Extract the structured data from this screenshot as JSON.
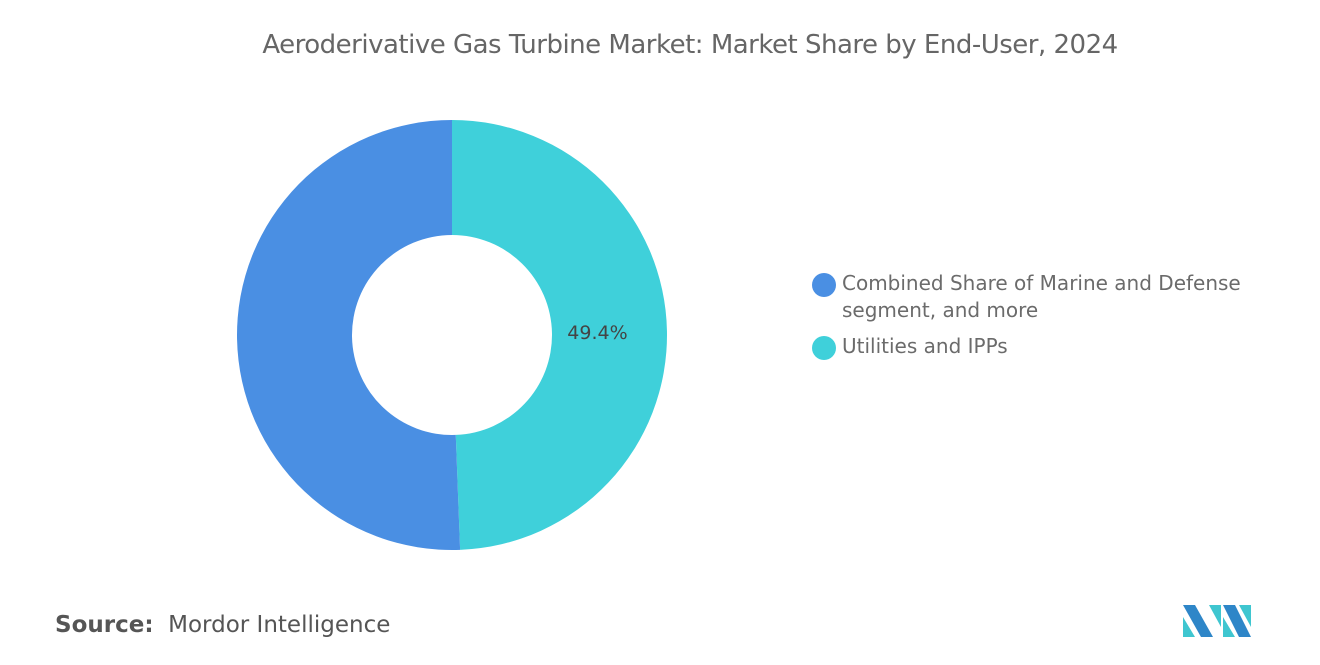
{
  "chart_data": {
    "type": "pie",
    "variant": "donut",
    "title": "Aeroderivative Gas Turbine Market: Market Share by End-User, 2024",
    "categories": [
      "Combined Share of Marine and Defense segment, and more",
      "Utilities and IPPs"
    ],
    "values": [
      50.6,
      49.4
    ],
    "colors": [
      "#4a8fe3",
      "#3fd0da"
    ],
    "data_labels": [
      "",
      "49.4%"
    ],
    "legend_position": "right"
  },
  "source": {
    "label": "Source:",
    "value": "Mordor Intelligence"
  },
  "logo": {
    "text": "Mordor Intelligence"
  }
}
